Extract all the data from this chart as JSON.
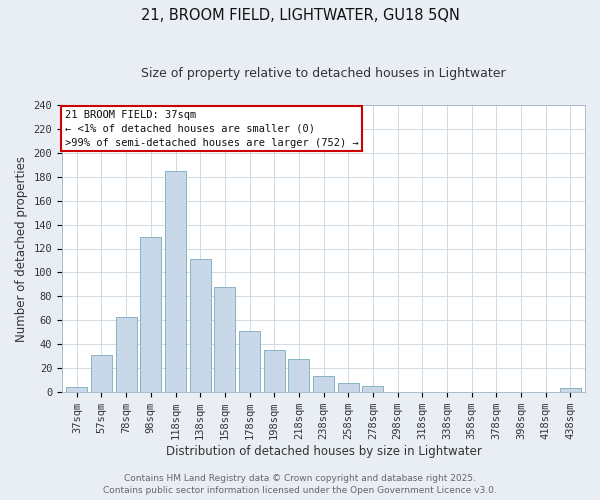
{
  "title": "21, BROOM FIELD, LIGHTWATER, GU18 5QN",
  "subtitle": "Size of property relative to detached houses in Lightwater",
  "xlabel": "Distribution of detached houses by size in Lightwater",
  "ylabel": "Number of detached properties",
  "bar_labels": [
    "37sqm",
    "57sqm",
    "78sqm",
    "98sqm",
    "118sqm",
    "138sqm",
    "158sqm",
    "178sqm",
    "198sqm",
    "218sqm",
    "238sqm",
    "258sqm",
    "278sqm",
    "298sqm",
    "318sqm",
    "338sqm",
    "358sqm",
    "378sqm",
    "398sqm",
    "418sqm",
    "438sqm"
  ],
  "bar_values": [
    4,
    31,
    63,
    130,
    185,
    111,
    88,
    51,
    35,
    27,
    13,
    7,
    5,
    0,
    0,
    0,
    0,
    0,
    0,
    0,
    3
  ],
  "bar_color": "#c8d8e8",
  "bar_edge_color": "#7aaabb",
  "ylim": [
    0,
    240
  ],
  "yticks": [
    0,
    20,
    40,
    60,
    80,
    100,
    120,
    140,
    160,
    180,
    200,
    220,
    240
  ],
  "annotation_box_title": "21 BROOM FIELD: 37sqm",
  "annotation_line1": "← <1% of detached houses are smaller (0)",
  "annotation_line2": ">99% of semi-detached houses are larger (752) →",
  "annotation_box_color": "#ffffff",
  "annotation_box_edge_color": "#cc0000",
  "footer_line1": "Contains HM Land Registry data © Crown copyright and database right 2025.",
  "footer_line2": "Contains public sector information licensed under the Open Government Licence v3.0.",
  "bg_color": "#e8eef4",
  "plot_bg_color": "#ffffff",
  "grid_color": "#c8d4de",
  "title_fontsize": 10.5,
  "subtitle_fontsize": 9,
  "axis_label_fontsize": 8.5,
  "tick_fontsize": 7.5,
  "footer_fontsize": 6.5,
  "annot_fontsize": 7.5
}
